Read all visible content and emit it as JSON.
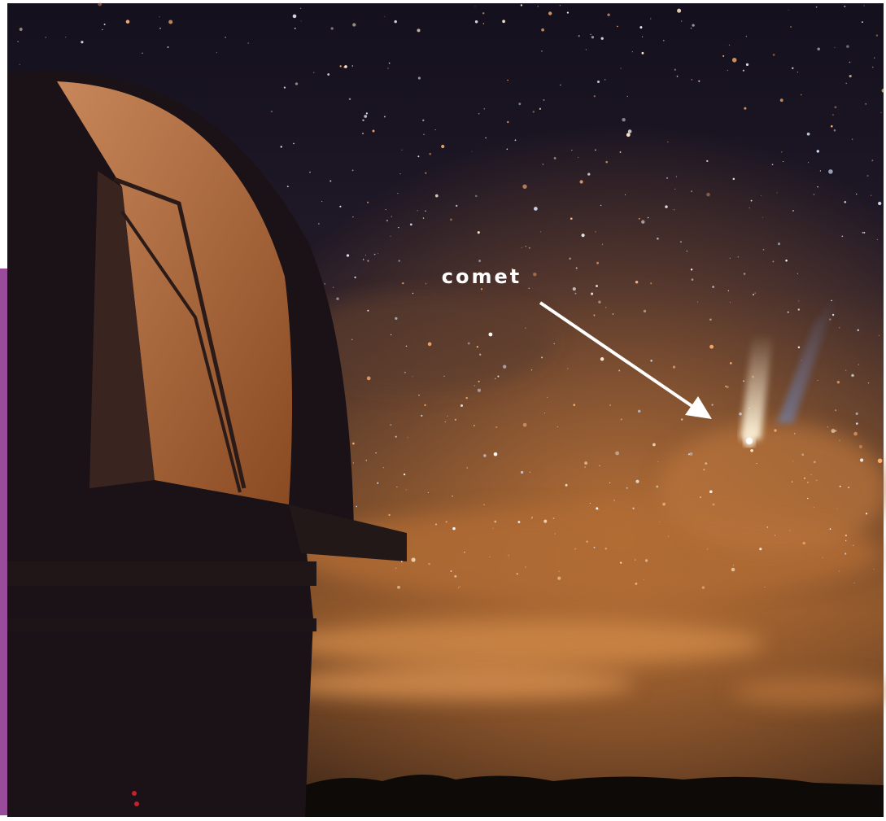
{
  "annotation": {
    "label": "comet"
  }
}
